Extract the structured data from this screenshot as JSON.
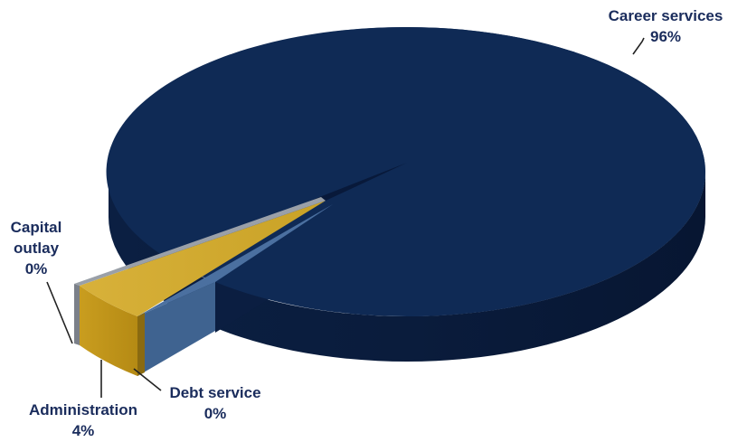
{
  "chart_data": {
    "type": "pie",
    "title": "",
    "slices": [
      {
        "label": "Career services",
        "value": 96,
        "value_label": "96%",
        "color": "#0f2a55"
      },
      {
        "label": "Administration",
        "value": 4,
        "value_label": "4%",
        "color": "#d4ab2c"
      },
      {
        "label": "Debt service",
        "value": 0,
        "value_label": "0%",
        "color": "#3f6390"
      },
      {
        "label": "Capital outlay",
        "value": 0,
        "value_label": "0%",
        "color": "#8a8f98"
      }
    ],
    "label_lines": [
      "Capital",
      "outlay"
    ],
    "style": {
      "three_d": true,
      "exploded": [
        "Administration",
        "Debt service",
        "Capital outlay"
      ],
      "label_color": "#1a2c5c",
      "leader_line_color": "#222222"
    }
  }
}
